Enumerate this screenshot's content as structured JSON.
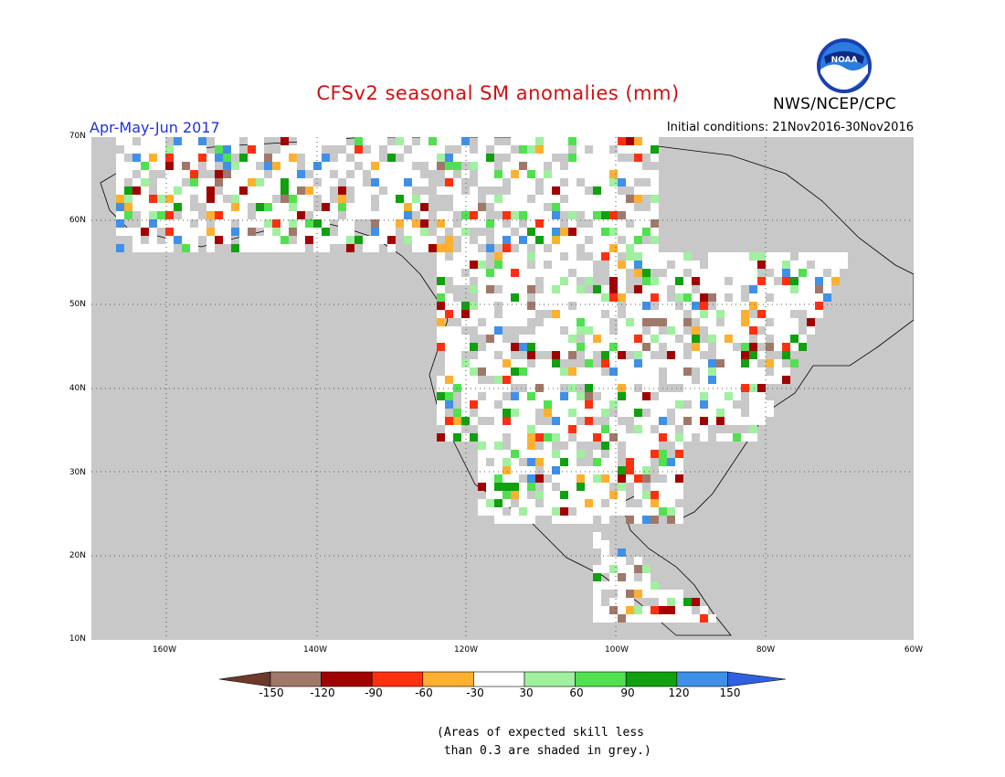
{
  "header": {
    "title": "CFSv2 seasonal SM anomalies (mm)",
    "agency": "NWS/NCEP/CPC",
    "logo_text": "NOAA",
    "season": "Apr-May-Jun 2017",
    "initial_conditions": "Initial conditions: 21Nov2016-30Nov2016"
  },
  "map": {
    "lat_labels": [
      "70N",
      "60N",
      "50N",
      "40N",
      "30N",
      "20N",
      "10N"
    ],
    "lon_labels": [
      "160W",
      "140W",
      "120W",
      "100W",
      "80W",
      "60W"
    ],
    "colors": {
      "no_skill": "#c8c8c8",
      "ocean": "#c8c8c8",
      "land_neutral": "#ffffff",
      "outline": "#000000"
    }
  },
  "colorbar": {
    "labels": [
      "-150",
      "-120",
      "-90",
      "-60",
      "-30",
      "30",
      "60",
      "90",
      "120",
      "150"
    ],
    "colors": [
      "#6b3a2a",
      "#a0786a",
      "#a00000",
      "#ff3010",
      "#ffb030",
      "#ffffff",
      "#a0f0a0",
      "#50e050",
      "#10a010",
      "#4090e8",
      "#3060e0"
    ]
  },
  "footnote": {
    "line1": "(Areas of expected skill less",
    "line2": " than 0.3 are shaded in grey.)"
  }
}
